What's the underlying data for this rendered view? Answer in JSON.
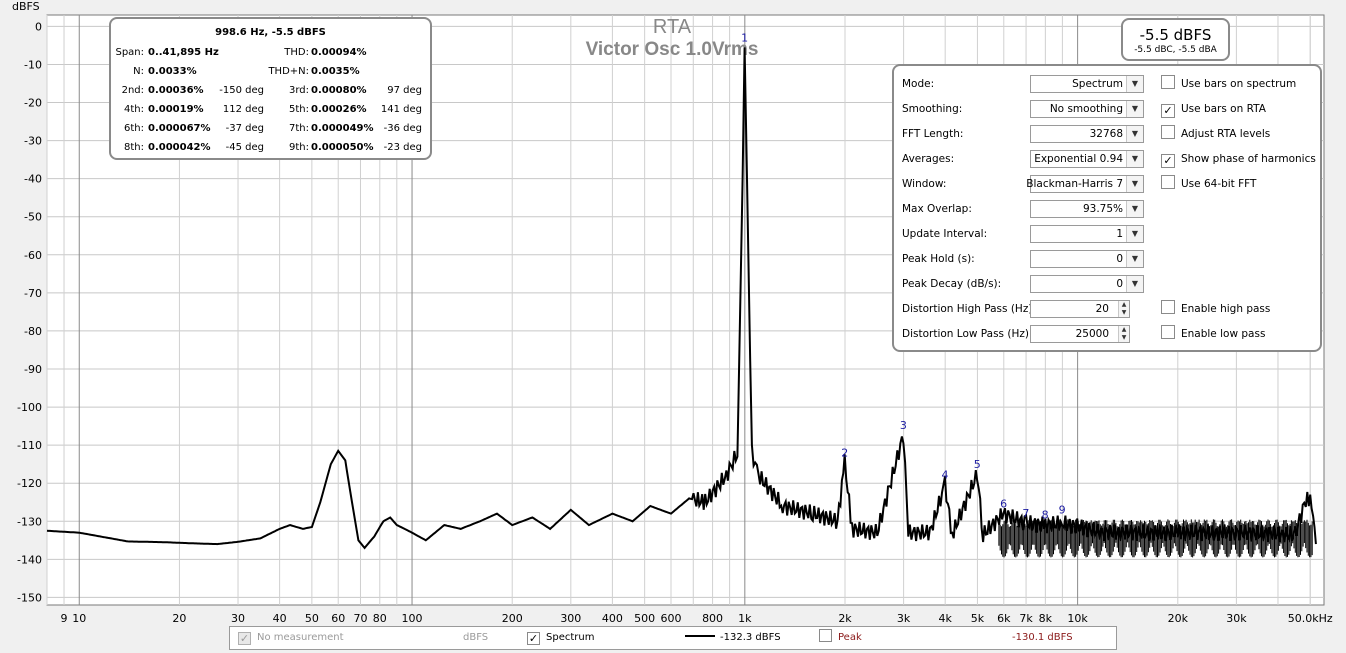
{
  "plot": {
    "title": "RTA",
    "subtitle": "Victor Osc 1.0Vrms",
    "y_axis_label": "dBFS",
    "x_unit": "kHz",
    "y_ticks": [
      "0",
      "-10",
      "-20",
      "-30",
      "-40",
      "-50",
      "-60",
      "-70",
      "-80",
      "-90",
      "-100",
      "-110",
      "-120",
      "-130",
      "-140",
      "-150"
    ],
    "x_ticks": [
      "9",
      "10",
      "20",
      "30",
      "40",
      "50",
      "60",
      "70",
      "80",
      "100",
      "200",
      "300",
      "400",
      "500",
      "600",
      "800",
      "1k",
      "2k",
      "3k",
      "4k",
      "5k",
      "6k",
      "7k",
      "8k",
      "10k",
      "20k",
      "30k",
      "50.0kHz"
    ],
    "harmonic_markers": [
      "1",
      "2",
      "3",
      "4",
      "5",
      "6",
      "7",
      "8",
      "9"
    ]
  },
  "chart_data": {
    "type": "line",
    "xlabel": "Hz",
    "ylabel": "dBFS",
    "x_scale": "log",
    "xlim": [
      8,
      55000
    ],
    "ylim": [
      -152,
      3
    ],
    "grid": true,
    "series": [
      {
        "name": "Spectrum",
        "color": "#000000",
        "points": [
          [
            8,
            -132.5
          ],
          [
            10,
            -133
          ],
          [
            14,
            -135.3
          ],
          [
            18,
            -135.5
          ],
          [
            22,
            -135.8
          ],
          [
            26,
            -136
          ],
          [
            30,
            -135.4
          ],
          [
            35,
            -134.5
          ],
          [
            40,
            -132
          ],
          [
            43,
            -131
          ],
          [
            47,
            -132
          ],
          [
            50,
            -131.5
          ],
          [
            53,
            -125
          ],
          [
            57,
            -115
          ],
          [
            60,
            -111.5
          ],
          [
            63,
            -114
          ],
          [
            66,
            -125
          ],
          [
            69,
            -135
          ],
          [
            72,
            -137
          ],
          [
            77,
            -134
          ],
          [
            82,
            -130
          ],
          [
            86,
            -129
          ],
          [
            90,
            -131
          ],
          [
            95,
            -132
          ],
          [
            100,
            -133
          ],
          [
            110,
            -135
          ],
          [
            125,
            -131
          ],
          [
            140,
            -132
          ],
          [
            160,
            -130
          ],
          [
            180,
            -128
          ],
          [
            200,
            -131
          ],
          [
            230,
            -129
          ],
          [
            260,
            -132
          ],
          [
            300,
            -127
          ],
          [
            340,
            -131
          ],
          [
            400,
            -128
          ],
          [
            460,
            -130
          ],
          [
            520,
            -126
          ],
          [
            600,
            -128
          ],
          [
            680,
            -124
          ],
          [
            760,
            -125
          ],
          [
            880,
            -118
          ],
          [
            950,
            -112
          ],
          [
            985,
            -40
          ],
          [
            998.6,
            -5.5
          ],
          [
            1015,
            -40
          ],
          [
            1050,
            -112
          ],
          [
            1100,
            -118
          ],
          [
            1300,
            -126
          ],
          [
            1600,
            -128
          ],
          [
            1900,
            -130
          ],
          [
            1996,
            -114.5
          ],
          [
            2100,
            -132
          ],
          [
            2500,
            -133
          ],
          [
            2996,
            -107.3
          ],
          [
            3100,
            -133
          ],
          [
            3600,
            -133
          ],
          [
            3994,
            -120.4
          ],
          [
            4200,
            -133.5
          ],
          [
            4993,
            -117.6
          ],
          [
            5200,
            -133.5
          ],
          [
            5990,
            -128
          ],
          [
            7000,
            -130.5
          ],
          [
            8000,
            -131
          ],
          [
            9000,
            -130.5
          ],
          [
            12000,
            -133
          ],
          [
            20000,
            -133
          ],
          [
            30000,
            -133
          ],
          [
            45000,
            -133.5
          ],
          [
            49000,
            -123
          ],
          [
            51000,
            -127
          ],
          [
            52000,
            -136
          ]
        ]
      }
    ],
    "harmonics": [
      {
        "n": "1",
        "freq": 998.6,
        "level": -5.5
      },
      {
        "n": "2",
        "freq": 1997,
        "level": -114.5
      },
      {
        "n": "3",
        "freq": 2996,
        "level": -107.3
      },
      {
        "n": "4",
        "freq": 3994,
        "level": -120.4
      },
      {
        "n": "5",
        "freq": 4993,
        "level": -117.6
      },
      {
        "n": "6",
        "freq": 5992,
        "level": -128
      },
      {
        "n": "7",
        "freq": 6990,
        "level": -130.5
      },
      {
        "n": "8",
        "freq": 7989,
        "level": -130.8
      },
      {
        "n": "9",
        "freq": 8987,
        "level": -129.5
      }
    ]
  },
  "harmonics_panel": {
    "header": "998.6 Hz, -5.5 dBFS",
    "span_label": "Span:",
    "span_value": "0..41,895 Hz",
    "thd_label": "THD:",
    "thd_value": "0.00094%",
    "n_label": "N:",
    "n_value": "0.0033%",
    "thdn_label": "THD+N:",
    "thdn_value": "0.0035%",
    "rows": [
      {
        "l1": "2nd:",
        "v1": "0.00036%",
        "p1": "-150 deg",
        "l2": "3rd:",
        "v2": "0.00080%",
        "p2": "97 deg"
      },
      {
        "l1": "4th:",
        "v1": "0.00019%",
        "p1": "112 deg",
        "l2": "5th:",
        "v2": "0.00026%",
        "p2": "141 deg"
      },
      {
        "l1": "6th:",
        "v1": "0.000067%",
        "p1": "-37 deg",
        "l2": "7th:",
        "v2": "0.000049%",
        "p2": "-36 deg"
      },
      {
        "l1": "8th:",
        "v1": "0.000042%",
        "p1": "-45 deg",
        "l2": "9th:",
        "v2": "0.000050%",
        "p2": "-23 deg"
      }
    ]
  },
  "level_readout": {
    "main": "-5.5 dBFS",
    "sub": "-5.5 dBC, -5.5 dBA"
  },
  "settings": {
    "rows": [
      {
        "label": "Mode:",
        "value": "Spectrum"
      },
      {
        "label": "Smoothing:",
        "value": "No  smoothing"
      },
      {
        "label": "FFT Length:",
        "value": "32768"
      },
      {
        "label": "Averages:",
        "value": "Exponential 0.94"
      },
      {
        "label": "Window:",
        "value": "Blackman-Harris 7"
      },
      {
        "label": "Max Overlap:",
        "value": "93.75%"
      },
      {
        "label": "Update Interval:",
        "value": "1"
      },
      {
        "label": "Peak Hold (s):",
        "value": "0"
      },
      {
        "label": "Peak Decay (dB/s):",
        "value": "0"
      },
      {
        "label": "Distortion High Pass (Hz):",
        "value": "20"
      },
      {
        "label": "Distortion Low Pass (Hz):",
        "value": "25000"
      }
    ],
    "checkboxes": [
      {
        "label": "Use bars on spectrum",
        "checked": false
      },
      {
        "label": "Use bars on RTA",
        "checked": true
      },
      {
        "label": "Adjust RTA levels",
        "checked": false
      },
      {
        "label": "Show phase of harmonics",
        "checked": true
      },
      {
        "label": "Use 64-bit FFT",
        "checked": false
      },
      {
        "label": "Enable high pass",
        "checked": false
      },
      {
        "label": "Enable low pass",
        "checked": false
      }
    ],
    "check_glyph": "✓",
    "arrow_glyph": "▼",
    "spin_up": "▲",
    "spin_down": "▼"
  },
  "legend": {
    "no_measurement": "No measurement",
    "no_measurement_unit": "dBFS",
    "spectrum": "Spectrum",
    "spectrum_value": "-132.3 dBFS",
    "peak": "Peak",
    "peak_value": "-130.1 dBFS",
    "peak_color": "#8b1a1a"
  }
}
